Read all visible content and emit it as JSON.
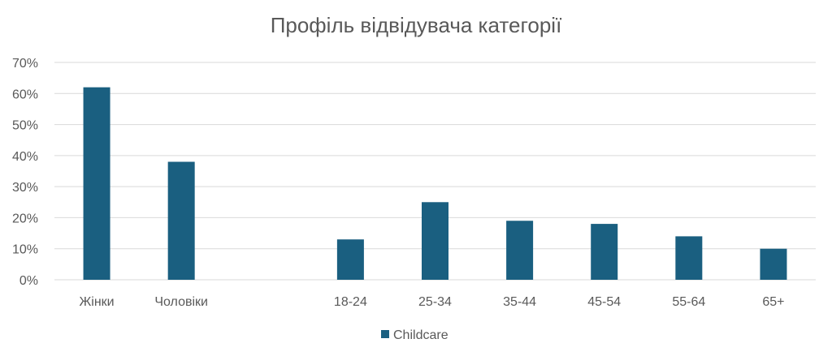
{
  "chart_data": {
    "type": "bar",
    "title": "Профіль відвідувача категорії",
    "categories": [
      "Жінки",
      "Чоловіки",
      "",
      "18-24",
      "25-34",
      "35-44",
      "45-54",
      "55-64",
      "65+"
    ],
    "series": [
      {
        "name": "Childcare",
        "values": [
          62,
          38,
          null,
          13,
          25,
          19,
          18,
          14,
          10
        ]
      }
    ],
    "y_ticks": [
      "0%",
      "10%",
      "20%",
      "30%",
      "40%",
      "50%",
      "60%",
      "70%"
    ],
    "ylim": [
      0,
      70
    ],
    "grid": true,
    "legend": "bottom",
    "colors": {
      "bar": "#1a5f80",
      "grid": "#d9d9d9",
      "text": "#595959"
    }
  }
}
